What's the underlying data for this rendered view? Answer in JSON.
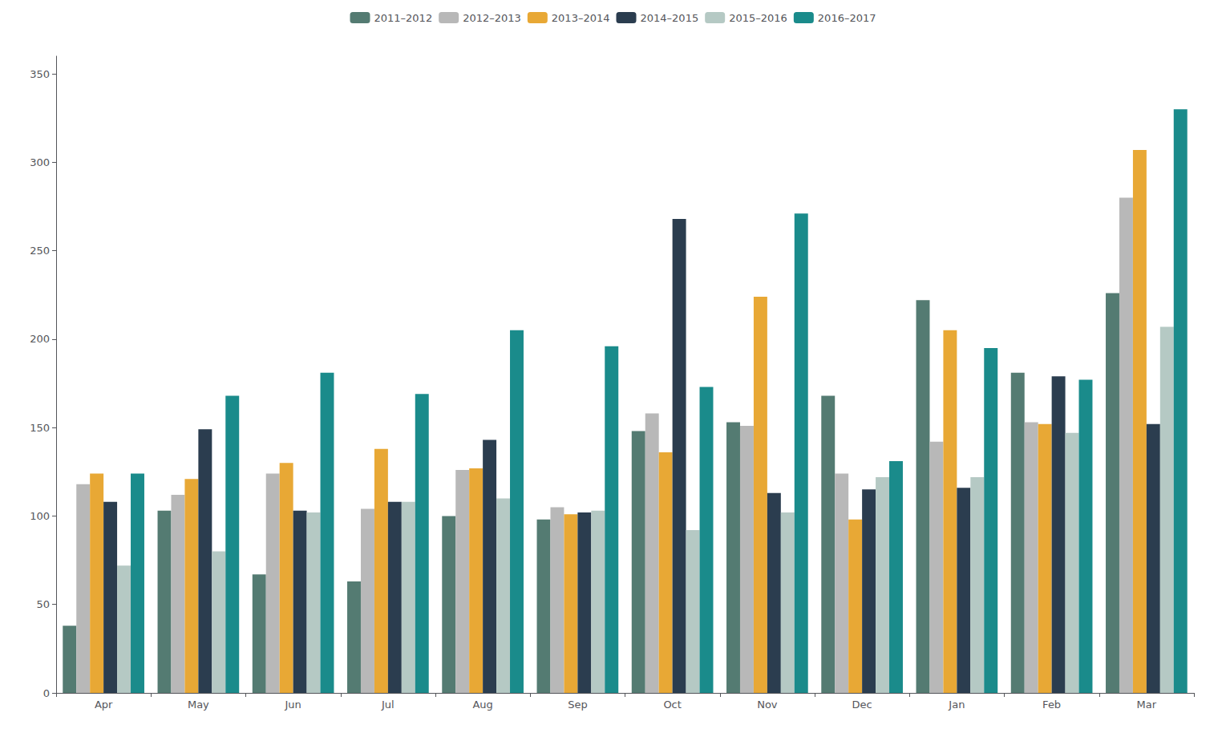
{
  "chart_data": {
    "type": "bar",
    "categories": [
      "Apr",
      "May",
      "Jun",
      "Jul",
      "Aug",
      "Sep",
      "Oct",
      "Nov",
      "Dec",
      "Jan",
      "Feb",
      "Mar"
    ],
    "series": [
      {
        "name": "2011–2012",
        "color": "#547b72",
        "values": [
          38,
          103,
          67,
          63,
          100,
          98,
          148,
          153,
          168,
          222,
          181,
          226
        ]
      },
      {
        "name": "2012–2013",
        "color": "#b8b8b8",
        "values": [
          118,
          112,
          124,
          104,
          126,
          105,
          158,
          151,
          124,
          142,
          153,
          280
        ]
      },
      {
        "name": "2013–2014",
        "color": "#e8a835",
        "values": [
          124,
          121,
          130,
          138,
          127,
          101,
          136,
          224,
          98,
          205,
          152,
          307
        ]
      },
      {
        "name": "2014–2015",
        "color": "#2b3d4f",
        "values": [
          108,
          149,
          103,
          108,
          143,
          102,
          268,
          113,
          115,
          116,
          179,
          152
        ]
      },
      {
        "name": "2015–2016",
        "color": "#b5c9c4",
        "values": [
          72,
          80,
          102,
          108,
          110,
          103,
          92,
          102,
          122,
          122,
          147,
          207
        ]
      },
      {
        "name": "2016–2017",
        "color": "#1a8b8b",
        "values": [
          124,
          168,
          181,
          169,
          205,
          196,
          173,
          271,
          131,
          195,
          177,
          330
        ]
      }
    ],
    "ylim": [
      0,
      360
    ],
    "yticks": [
      0,
      50,
      100,
      150,
      200,
      250,
      300,
      350
    ],
    "grid": false,
    "legend": "top"
  }
}
